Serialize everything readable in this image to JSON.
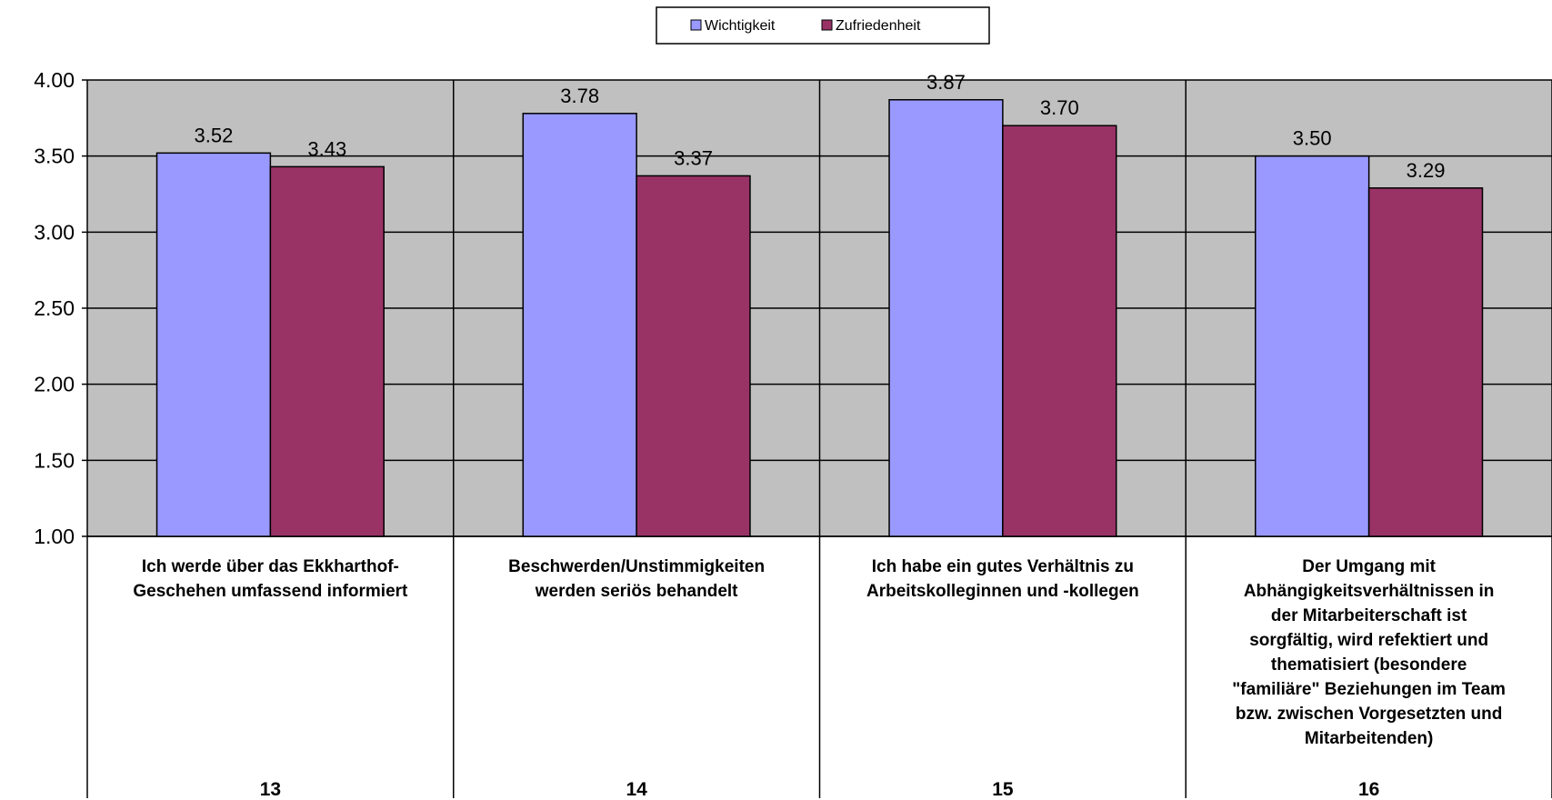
{
  "chart_data": {
    "type": "bar",
    "title": "",
    "xlabel": "",
    "ylabel": "",
    "ylim": [
      1.0,
      4.0
    ],
    "yticks": [
      "1.00",
      "1.50",
      "2.00",
      "2.50",
      "3.00",
      "3.50",
      "4.00"
    ],
    "grid": true,
    "legend_position": "top-center",
    "categories": [
      "13",
      "14",
      "15",
      "16"
    ],
    "category_descriptions": [
      [
        "Ich werde über das Ekkharthof-",
        "Geschehen umfassend informiert"
      ],
      [
        "Beschwerden/Unstimmigkeiten",
        "werden seriös behandelt"
      ],
      [
        "Ich habe ein gutes Verhältnis zu",
        "Arbeitskolleginnen und -kollegen"
      ],
      [
        "Der Umgang mit",
        "Abhängigkeitsverhältnissen in",
        "der Mitarbeiterschaft  ist",
        "sorgfältig, wird refektiert und",
        "thematisiert (besondere",
        "\"familiäre\" Beziehungen im Team",
        "bzw. zwischen Vorgesetzten und",
        "Mitarbeitenden)"
      ]
    ],
    "series": [
      {
        "name": "Wichtigkeit",
        "color": "#9999ff",
        "values": [
          3.52,
          3.78,
          3.87,
          3.5
        ],
        "labels": [
          "3.52",
          "3.78",
          "3.87",
          "3.50"
        ]
      },
      {
        "name": "Zufriedenheit",
        "color": "#993366",
        "values": [
          3.43,
          3.37,
          3.7,
          3.29
        ],
        "labels": [
          "3.43",
          "3.37",
          "3.70",
          "3.29"
        ]
      }
    ],
    "plot_background": "#c0c0c0"
  }
}
